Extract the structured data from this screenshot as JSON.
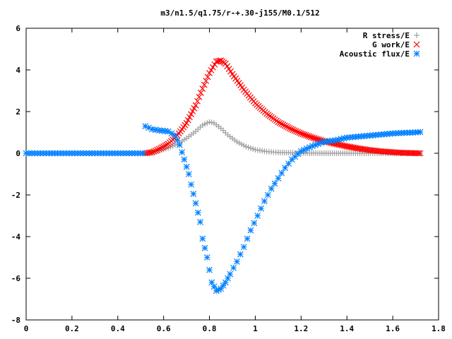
{
  "chart_data": {
    "type": "scatter",
    "title": "m3/n1.5/q1.75/r-+.30-j155/M0.1/512",
    "xlabel": "",
    "ylabel": "",
    "xlim": [
      0,
      1.8
    ],
    "ylim": [
      -8,
      6
    ],
    "x_ticks": [
      "0",
      "0.2",
      "0.4",
      "0.6",
      "0.8",
      "1",
      "1.2",
      "1.4",
      "1.6",
      "1.8"
    ],
    "y_ticks": [
      "6",
      "4",
      "2",
      "0",
      "-2",
      "-4",
      "-6",
      "-8"
    ],
    "grid": false,
    "legend_position": "top-right",
    "series": [
      {
        "name": "R stress/E",
        "marker": "plus",
        "color": "#a0a0a0",
        "points": [
          [
            0.52,
            0.0
          ],
          [
            0.55,
            0.04
          ],
          [
            0.58,
            0.12
          ],
          [
            0.62,
            0.25
          ],
          [
            0.66,
            0.45
          ],
          [
            0.7,
            0.72
          ],
          [
            0.74,
            1.05
          ],
          [
            0.77,
            1.35
          ],
          [
            0.8,
            1.5
          ],
          [
            0.82,
            1.45
          ],
          [
            0.85,
            1.2
          ],
          [
            0.88,
            0.88
          ],
          [
            0.92,
            0.55
          ],
          [
            0.96,
            0.32
          ],
          [
            1.0,
            0.17
          ],
          [
            1.05,
            0.08
          ],
          [
            1.1,
            0.04
          ],
          [
            1.2,
            0.01
          ],
          [
            1.3,
            0.0
          ],
          [
            1.4,
            0.0
          ],
          [
            1.55,
            0.0
          ],
          [
            1.72,
            0.0
          ]
        ]
      },
      {
        "name": "G work/E",
        "marker": "cross",
        "color": "#ff0000",
        "points": [
          [
            0.52,
            0.0
          ],
          [
            0.55,
            0.05
          ],
          [
            0.58,
            0.2
          ],
          [
            0.62,
            0.45
          ],
          [
            0.66,
            0.85
          ],
          [
            0.7,
            1.45
          ],
          [
            0.74,
            2.3
          ],
          [
            0.77,
            3.1
          ],
          [
            0.8,
            3.85
          ],
          [
            0.83,
            4.4
          ],
          [
            0.85,
            4.45
          ],
          [
            0.87,
            4.3
          ],
          [
            0.9,
            3.8
          ],
          [
            0.95,
            3.05
          ],
          [
            1.0,
            2.4
          ],
          [
            1.05,
            1.9
          ],
          [
            1.1,
            1.5
          ],
          [
            1.15,
            1.2
          ],
          [
            1.2,
            0.95
          ],
          [
            1.25,
            0.75
          ],
          [
            1.3,
            0.58
          ],
          [
            1.35,
            0.45
          ],
          [
            1.4,
            0.33
          ],
          [
            1.45,
            0.23
          ],
          [
            1.5,
            0.15
          ],
          [
            1.55,
            0.09
          ],
          [
            1.6,
            0.05
          ],
          [
            1.65,
            0.02
          ],
          [
            1.72,
            0.0
          ]
        ]
      },
      {
        "name": "Acoustic flux/E",
        "marker": "star",
        "color": "#0080ff",
        "points": [
          [
            0.0,
            0.0
          ],
          [
            0.1,
            0.0
          ],
          [
            0.2,
            0.0
          ],
          [
            0.3,
            0.0
          ],
          [
            0.4,
            0.0
          ],
          [
            0.5,
            0.0
          ],
          [
            0.51,
            0.0
          ],
          [
            0.52,
            1.3
          ],
          [
            0.55,
            1.15
          ],
          [
            0.58,
            1.1
          ],
          [
            0.62,
            1.05
          ],
          [
            0.65,
            0.85
          ],
          [
            0.67,
            0.4
          ],
          [
            0.69,
            -0.3
          ],
          [
            0.71,
            -1.0
          ],
          [
            0.72,
            -1.5
          ],
          [
            0.74,
            -2.4
          ],
          [
            0.76,
            -3.3
          ],
          [
            0.77,
            -4.1
          ],
          [
            0.79,
            -5.0
          ],
          [
            0.8,
            -5.6
          ],
          [
            0.81,
            -6.2
          ],
          [
            0.83,
            -6.6
          ],
          [
            0.85,
            -6.5
          ],
          [
            0.87,
            -6.2
          ],
          [
            0.89,
            -5.8
          ],
          [
            0.92,
            -5.2
          ],
          [
            0.95,
            -4.5
          ],
          [
            0.98,
            -3.7
          ],
          [
            1.01,
            -3.0
          ],
          [
            1.04,
            -2.3
          ],
          [
            1.07,
            -1.7
          ],
          [
            1.1,
            -1.2
          ],
          [
            1.13,
            -0.7
          ],
          [
            1.16,
            -0.3
          ],
          [
            1.2,
            0.1
          ],
          [
            1.25,
            0.35
          ],
          [
            1.3,
            0.55
          ],
          [
            1.35,
            0.62
          ],
          [
            1.4,
            0.75
          ],
          [
            1.45,
            0.8
          ],
          [
            1.5,
            0.85
          ],
          [
            1.55,
            0.9
          ],
          [
            1.6,
            0.95
          ],
          [
            1.65,
            0.98
          ],
          [
            1.7,
            1.0
          ],
          [
            1.72,
            1.02
          ]
        ]
      }
    ]
  }
}
